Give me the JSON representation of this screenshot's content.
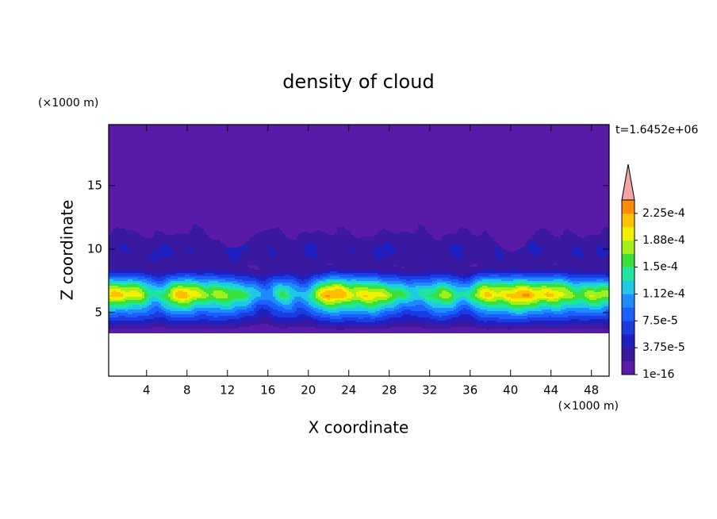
{
  "chart_data": {
    "type": "contour",
    "title": "density of cloud",
    "x_label": "X coordinate",
    "y_label": "Z coordinate",
    "x_unit": "(×1000 m)",
    "y_unit": "(×1000 m)",
    "annotation": "t=1.6452e+06",
    "xlim": [
      0.25,
      49.75
    ],
    "ylim": [
      0,
      19.8
    ],
    "xticks": [
      4,
      8,
      12,
      16,
      20,
      24,
      28,
      32,
      36,
      40,
      44,
      48
    ],
    "yticks": [
      5,
      10,
      15
    ],
    "colorbar": {
      "lim": [
        0,
        0.00024375
      ],
      "ticks": [
        {
          "value": 1e-16,
          "label": "1e-16"
        },
        {
          "value": 3.75e-05,
          "label": "3.75e-5"
        },
        {
          "value": 7.5e-05,
          "label": "7.5e-5"
        },
        {
          "value": 0.0001125,
          "label": "1.12e-4"
        },
        {
          "value": 0.00015,
          "label": "1.5e-4"
        },
        {
          "value": 0.0001875,
          "label": "1.88e-4"
        },
        {
          "value": 0.000225,
          "label": "2.25e-4"
        }
      ],
      "colors": [
        "#5a1aa8",
        "#3a18a0",
        "#2020c0",
        "#1a3ce0",
        "#1a60ff",
        "#1e8cff",
        "#1ec8e6",
        "#1ee6a0",
        "#3ce03c",
        "#a0f01e",
        "#f0f000",
        "#ffc000",
        "#ff8c00"
      ],
      "extend_color": "#f4a4a4"
    }
  }
}
